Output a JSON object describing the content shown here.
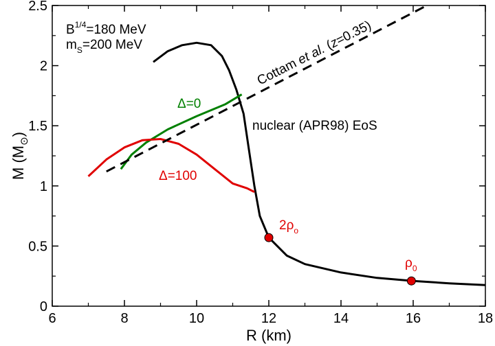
{
  "chart_data": {
    "type": "line",
    "xlabel": "R (km)",
    "ylabel_main": "M (M",
    "ylabel_sub": "⊙",
    "ylabel_close": ")",
    "xlim": [
      6,
      18
    ],
    "ylim": [
      0,
      2.5
    ],
    "x_ticks": [
      6,
      8,
      10,
      12,
      14,
      16,
      18
    ],
    "y_ticks": [
      0,
      0.5,
      1,
      1.5,
      2,
      2.5
    ],
    "y_tick_labels": [
      "0",
      "0.5",
      "1",
      "1.5",
      "2",
      "2.5"
    ],
    "grid": false,
    "params": {
      "b_main": "B",
      "b_sup": "1/4",
      "b_rest": "=180 MeV",
      "m_main": "m",
      "m_sub": "S",
      "m_rest": "=200 MeV"
    },
    "series": [
      {
        "id": "nuclear",
        "color": "#000000",
        "style": "solid",
        "label": "nuclear (APR98) EoS",
        "points": [
          [
            8.8,
            2.03
          ],
          [
            9.2,
            2.12
          ],
          [
            9.6,
            2.17
          ],
          [
            10.0,
            2.19
          ],
          [
            10.4,
            2.17
          ],
          [
            10.7,
            2.08
          ],
          [
            10.9,
            1.96
          ],
          [
            11.1,
            1.8
          ],
          [
            11.3,
            1.6
          ],
          [
            11.45,
            1.3
          ],
          [
            11.6,
            1.0
          ],
          [
            11.75,
            0.75
          ],
          [
            12.0,
            0.57
          ],
          [
            12.5,
            0.42
          ],
          [
            13.0,
            0.35
          ],
          [
            14.0,
            0.28
          ],
          [
            15.0,
            0.235
          ],
          [
            16.0,
            0.21
          ],
          [
            17.0,
            0.19
          ],
          [
            18.0,
            0.175
          ]
        ]
      },
      {
        "id": "delta0",
        "color": "#008000",
        "style": "solid",
        "label": "Δ=0",
        "points": [
          [
            7.9,
            1.14
          ],
          [
            8.2,
            1.26
          ],
          [
            8.6,
            1.36
          ],
          [
            9.2,
            1.47
          ],
          [
            10.0,
            1.58
          ],
          [
            10.8,
            1.68
          ],
          [
            11.25,
            1.76
          ]
        ]
      },
      {
        "id": "delta100",
        "color": "#e00000",
        "style": "solid",
        "label": "Δ=100",
        "points": [
          [
            7.0,
            1.08
          ],
          [
            7.5,
            1.22
          ],
          [
            8.0,
            1.32
          ],
          [
            8.5,
            1.38
          ],
          [
            9.0,
            1.39
          ],
          [
            9.5,
            1.35
          ],
          [
            10.0,
            1.26
          ],
          [
            10.5,
            1.14
          ],
          [
            11.0,
            1.02
          ],
          [
            11.4,
            0.98
          ],
          [
            11.6,
            0.95
          ]
        ]
      },
      {
        "id": "cottam",
        "color": "#000000",
        "style": "dashed",
        "label_main": "Cottam ",
        "label_italic": "et al.",
        "label_paren": " (",
        "label_z": "z",
        "label_rest": "=0.35)",
        "points": [
          [
            7.5,
            1.12
          ],
          [
            16.7,
            2.55
          ]
        ]
      }
    ],
    "markers": [
      {
        "x": 12.0,
        "y": 0.57,
        "color": "#e00000",
        "label_main": "2ρ",
        "label_sub": "o"
      },
      {
        "x": 15.95,
        "y": 0.21,
        "color": "#e00000",
        "label_main": "ρ",
        "label_sub": "0"
      }
    ]
  }
}
